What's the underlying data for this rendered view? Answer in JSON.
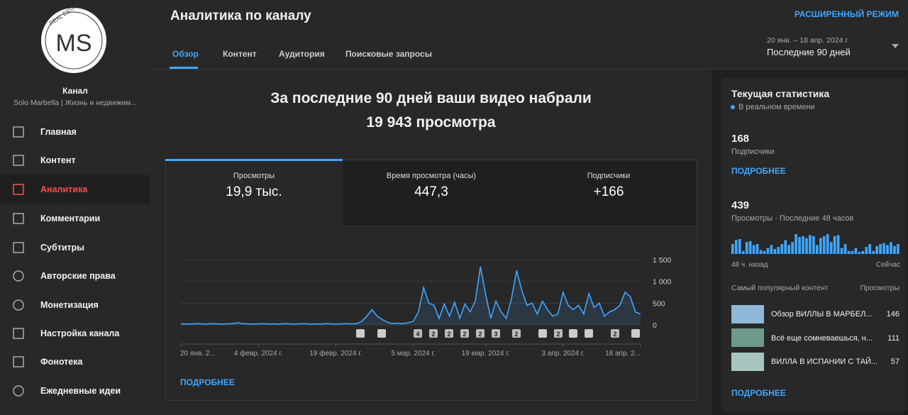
{
  "sidebar": {
    "logo": {
      "text": "REAL ESTATE",
      "monogram": "MS"
    },
    "channel_label": "Канал",
    "channel_name": "Solo Marbella | Жизнь и недвижим...",
    "nav": [
      "Главная",
      "Контент",
      "Аналитика",
      "Комментарии",
      "Субтитры",
      "Авторские права",
      "Монетизация",
      "Настройка канала",
      "Фонотека",
      "Ежедневные идеи"
    ]
  },
  "header": {
    "title": "Аналитика по каналу",
    "advanced": "РАСШИРЕННЫЙ РЕЖИМ",
    "tabs": [
      "Обзор",
      "Контент",
      "Аудитория",
      "Поисковые запросы"
    ],
    "date_range": "20 янв. – 18 апр. 2024 г.",
    "period": "Последние 90 дней"
  },
  "summary": {
    "line1": "За последние 90 дней ваши видео набрали",
    "line2": "19 943 просмотра"
  },
  "metrics": [
    {
      "label": "Просмотры",
      "value": "19,9 тыс."
    },
    {
      "label": "Время просмотра (часы)",
      "value": "447,3"
    },
    {
      "label": "Подписчики",
      "value": "+166"
    }
  ],
  "chart_more": "ПОДРОБНЕЕ",
  "chart_data": [
    {
      "type": "line",
      "color": "#3ea6ff",
      "ylim": [
        0,
        1500
      ],
      "yticks": [
        0,
        500,
        {
          "value": 1000,
          "label": "1 000"
        },
        {
          "value": 1500,
          "label": "1 500"
        }
      ],
      "grid": true,
      "annotations": [
        "4",
        "2",
        "2",
        "2",
        "2",
        "3",
        "2",
        "2",
        "2"
      ],
      "categories": [
        "20 янв. 2...",
        null,
        null,
        null,
        null,
        null,
        null,
        null,
        null,
        null,
        null,
        null,
        null,
        null,
        null,
        "4 февр. 2024 г.",
        null,
        null,
        null,
        null,
        null,
        null,
        null,
        null,
        null,
        null,
        null,
        null,
        null,
        null,
        "19 февр. 2024 г.",
        null,
        null,
        null,
        null,
        null,
        null,
        null,
        null,
        null,
        null,
        null,
        null,
        null,
        null,
        "5 мар. 2024 г.",
        null,
        null,
        null,
        null,
        null,
        null,
        null,
        null,
        null,
        null,
        null,
        null,
        null,
        "19 мар. 2024 г.",
        null,
        null,
        null,
        null,
        null,
        null,
        null,
        null,
        null,
        null,
        null,
        null,
        null,
        null,
        "3 апр. 2024 г.",
        null,
        null,
        null,
        null,
        null,
        null,
        null,
        null,
        null,
        null,
        null,
        null,
        null,
        null,
        "18 апр. 2..."
      ],
      "values": [
        20,
        25,
        20,
        30,
        25,
        20,
        30,
        25,
        20,
        25,
        30,
        50,
        30,
        25,
        20,
        25,
        30,
        20,
        25,
        20,
        30,
        25,
        20,
        25,
        30,
        20,
        25,
        20,
        30,
        25,
        20,
        25,
        30,
        25,
        30,
        80,
        200,
        350,
        200,
        120,
        60,
        30,
        40,
        30,
        50,
        80,
        300,
        860,
        500,
        450,
        150,
        480,
        200,
        520,
        150,
        480,
        300,
        550,
        1340,
        700,
        150,
        550,
        300,
        150,
        600,
        1250,
        800,
        450,
        500,
        250,
        550,
        350,
        200,
        250,
        750,
        450,
        350,
        450,
        250,
        720,
        400,
        500,
        200,
        300,
        350,
        450,
        750,
        650,
        300,
        250
      ]
    },
    {
      "type": "bar",
      "color": "#3ea6ff",
      "categories": [
        "48 ч. назад",
        null,
        null,
        null,
        null,
        null,
        null,
        null,
        null,
        null,
        null,
        null,
        null,
        null,
        null,
        null,
        null,
        null,
        null,
        null,
        null,
        null,
        null,
        null,
        null,
        null,
        null,
        null,
        null,
        null,
        null,
        null,
        null,
        null,
        null,
        null,
        null,
        null,
        null,
        null,
        null,
        null,
        null,
        null,
        null,
        null,
        null,
        "Сейчас"
      ],
      "values": [
        10,
        14,
        15,
        3,
        12,
        13,
        9,
        10,
        4,
        3,
        6,
        9,
        5,
        7,
        10,
        14,
        9,
        12,
        20,
        17,
        18,
        16,
        19,
        18,
        9,
        16,
        18,
        20,
        12,
        18,
        19,
        6,
        10,
        3,
        3,
        6,
        2,
        3,
        7,
        10,
        3,
        8,
        10,
        11,
        9,
        12,
        8,
        10
      ]
    }
  ],
  "realtime": {
    "title": "Текущая статистика",
    "live": "В реальном времени",
    "subs_value": "168",
    "subs_label": "Подписчики",
    "more1": "ПОДРОБНЕЕ",
    "views_value": "439",
    "views_label": "Просмотры · Последние 48 часов",
    "top_header": "Самый популярный контент",
    "top_views_header": "Просмотры",
    "top": [
      {
        "title": "Обзор ВИЛЛЫ В МАРБЕЛ...",
        "views": "146"
      },
      {
        "title": "Всё еще сомневаешься, н...",
        "views": "111"
      },
      {
        "title": "ВИЛЛА В ИСПАНИИ С ТАЙ...",
        "views": "57"
      }
    ],
    "more2": "ПОДРОБНЕЕ"
  }
}
